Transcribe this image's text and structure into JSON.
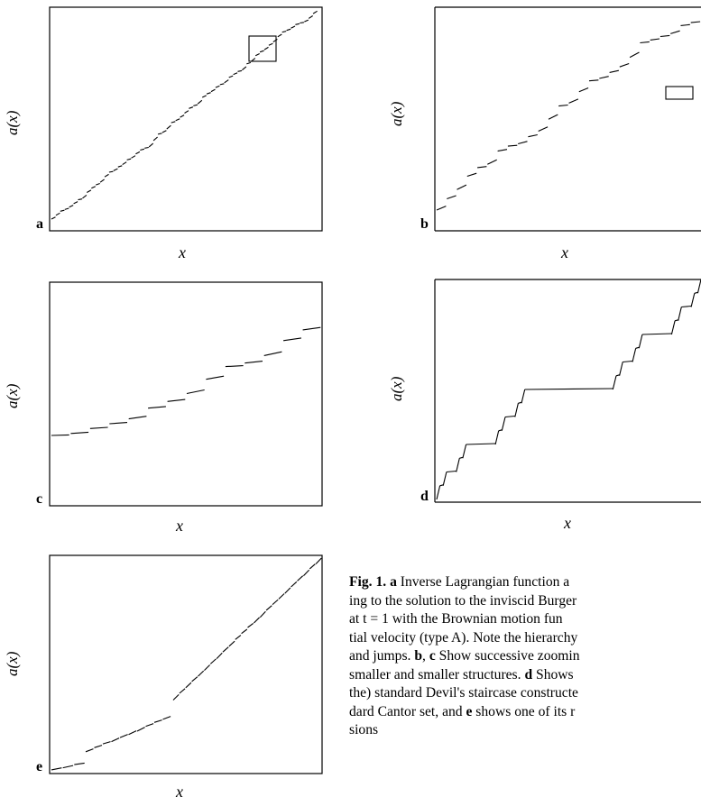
{
  "panels": [
    {
      "id": "a",
      "letter": "a",
      "ylabel": "a(x)",
      "xlabel": "x"
    },
    {
      "id": "b",
      "letter": "b",
      "ylabel": "a(x)",
      "xlabel": "x"
    },
    {
      "id": "c",
      "letter": "c",
      "ylabel": "a(x)",
      "xlabel": "x"
    },
    {
      "id": "d",
      "letter": "d",
      "ylabel": "a(x)",
      "xlabel": "x"
    },
    {
      "id": "e",
      "letter": "e",
      "ylabel": "a(x)",
      "xlabel": "x"
    }
  ],
  "caption": {
    "fig_label": "Fig. 1.",
    "lines": [
      [
        "a",
        " Inverse Lagrangian function a"
      ],
      [
        "ing to the solution to the inviscid Burger"
      ],
      [
        "at t = 1 with the Brownian motion fun"
      ],
      [
        "tial velocity (type A). Note the hierarchy"
      ],
      [
        "and jumps. ",
        "b",
        ", ",
        "c",
        " Show successive zoomin"
      ],
      [
        "smaller and smaller structures. ",
        "d",
        " Shows"
      ],
      [
        "the) standard Devil's staircase constructe"
      ],
      [
        "dard Cantor set, and ",
        "e",
        " shows one of its r"
      ],
      [
        "sions"
      ]
    ]
  },
  "chart_data": [
    {
      "type": "line",
      "panel": "a",
      "title": "",
      "xlabel": "x",
      "ylabel": "a(x)",
      "description_kind": "monotone staircase, many small steps",
      "zoom_box": true
    },
    {
      "type": "line",
      "panel": "b",
      "title": "",
      "xlabel": "x",
      "ylabel": "a(x)",
      "description_kind": "monotone staircase, zoom of box in a",
      "zoom_box": true
    },
    {
      "type": "line",
      "panel": "c",
      "title": "",
      "xlabel": "x",
      "ylabel": "a(x)",
      "description_kind": "monotone staircase, zoom of box in b"
    },
    {
      "type": "line",
      "panel": "d",
      "title": "",
      "xlabel": "x",
      "ylabel": "a(x)",
      "description_kind": "standard Devil's staircase"
    },
    {
      "type": "line",
      "panel": "e",
      "title": "",
      "xlabel": "x",
      "ylabel": "a(x)",
      "description_kind": "Devil's staircase variant"
    }
  ]
}
